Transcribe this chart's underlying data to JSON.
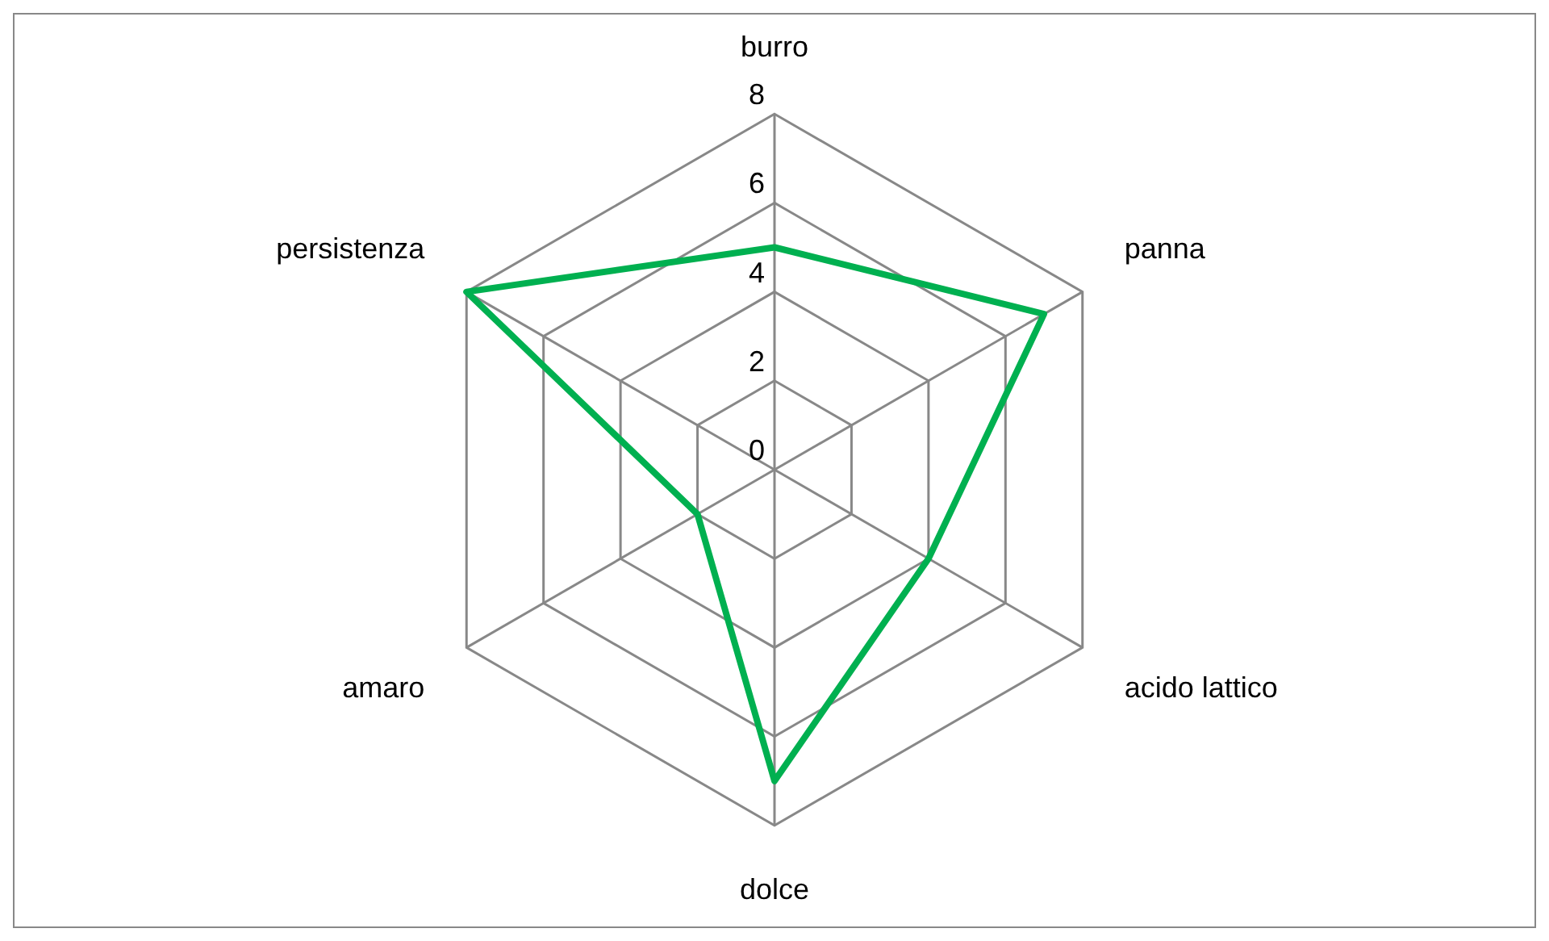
{
  "chart_data": {
    "type": "radar",
    "categories": [
      "burro",
      "panna",
      "acido lattico",
      "dolce",
      "amaro",
      "persistenza"
    ],
    "series": [
      {
        "color": "#00b050",
        "values": [
          5,
          7,
          4,
          7,
          2,
          8
        ]
      }
    ],
    "ylim": [
      0,
      8
    ],
    "yticks": [
      0,
      2,
      4,
      6,
      8
    ],
    "grid": true,
    "legend": false,
    "marker": "none"
  }
}
